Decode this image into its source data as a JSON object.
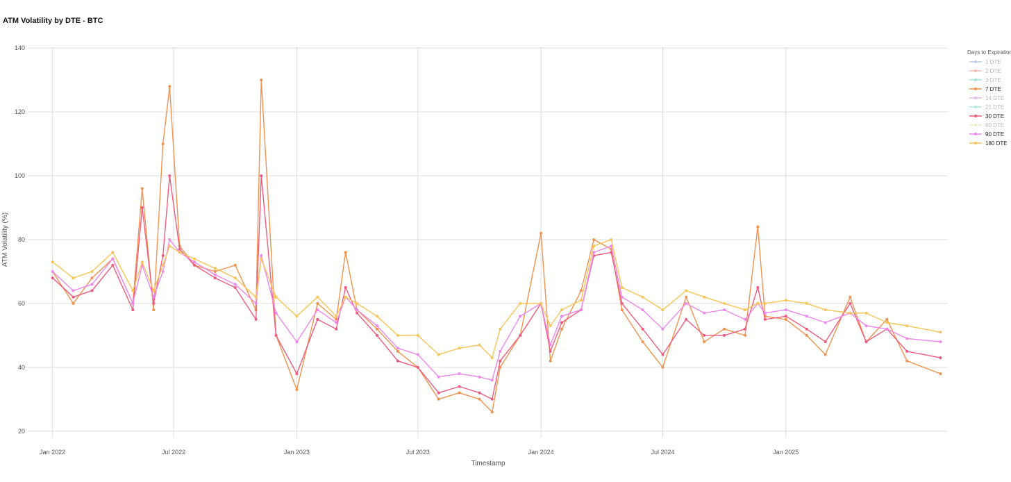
{
  "chart_data": {
    "type": "line",
    "title": "ATM Volatility by DTE - BTC",
    "xlabel": "Timestamp",
    "ylabel": "ATM Volatility (%)",
    "ylim": [
      18,
      142
    ],
    "yticks": [
      20,
      40,
      60,
      80,
      100,
      120,
      140
    ],
    "xlim": [
      "2021-11-25",
      "2025-08-31"
    ],
    "xticks": [
      {
        "date": "2022-01-01",
        "label": "Jan 2022"
      },
      {
        "date": "2022-07-01",
        "label": "Jul 2022"
      },
      {
        "date": "2023-01-01",
        "label": "Jan 2023"
      },
      {
        "date": "2023-07-01",
        "label": "Jul 2023"
      },
      {
        "date": "2024-01-01",
        "label": "Jan 2024"
      },
      {
        "date": "2024-07-01",
        "label": "Jul 2024"
      },
      {
        "date": "2025-01-01",
        "label": "Jan 2025"
      }
    ],
    "grid": true,
    "legend": {
      "title": "Days to Expiration",
      "position": "right"
    },
    "x": [
      "2022-01-01",
      "2022-02-01",
      "2022-03-01",
      "2022-04-01",
      "2022-05-01",
      "2022-05-15",
      "2022-06-01",
      "2022-06-15",
      "2022-06-25",
      "2022-07-10",
      "2022-08-01",
      "2022-09-01",
      "2022-10-01",
      "2022-11-01",
      "2022-11-09",
      "2022-12-01",
      "2023-01-01",
      "2023-02-01",
      "2023-03-01",
      "2023-03-15",
      "2023-04-01",
      "2023-05-01",
      "2023-06-01",
      "2023-07-01",
      "2023-08-01",
      "2023-09-01",
      "2023-10-01",
      "2023-10-20",
      "2023-11-01",
      "2023-12-01",
      "2024-01-01",
      "2024-01-15",
      "2024-02-01",
      "2024-03-01",
      "2024-03-20",
      "2024-04-15",
      "2024-05-01",
      "2024-06-01",
      "2024-07-01",
      "2024-08-05",
      "2024-09-01",
      "2024-10-01",
      "2024-11-01",
      "2024-11-20",
      "2024-12-01",
      "2025-01-01",
      "2025-02-01",
      "2025-03-01",
      "2025-04-07",
      "2025-05-01",
      "2025-06-01",
      "2025-07-01",
      "2025-08-20"
    ],
    "series": [
      {
        "name": "1 DTE",
        "color": "#a6b4dc",
        "visible": false
      },
      {
        "name": "2 DTE",
        "color": "#f4a28c",
        "visible": false
      },
      {
        "name": "3 DTE",
        "color": "#7ddac0",
        "visible": false
      },
      {
        "name": "7 DTE",
        "color": "#f0924c",
        "visible": true,
        "values": [
          70,
          60,
          68,
          74,
          60,
          96,
          58,
          110,
          128,
          78,
          72,
          70,
          72,
          58,
          130,
          50,
          33,
          60,
          55,
          76,
          58,
          52,
          45,
          40,
          30,
          32,
          30,
          26,
          40,
          50,
          82,
          42,
          52,
          64,
          80,
          77,
          58,
          48,
          40,
          62,
          48,
          52,
          50,
          84,
          56,
          55,
          50,
          44,
          62,
          48,
          55,
          42,
          38
        ]
      },
      {
        "name": "14 DTE",
        "color": "#dc9ce4",
        "visible": false
      },
      {
        "name": "21 DTE",
        "color": "#94dcd8",
        "visible": false
      },
      {
        "name": "30 DTE",
        "color": "#ee5a7c",
        "visible": true,
        "values": [
          68,
          62,
          64,
          72,
          58,
          90,
          60,
          75,
          100,
          77,
          72,
          68,
          65,
          55,
          100,
          50,
          38,
          55,
          52,
          65,
          57,
          50,
          42,
          40,
          32,
          34,
          32,
          30,
          42,
          50,
          60,
          45,
          54,
          58,
          75,
          76,
          60,
          52,
          44,
          55,
          50,
          50,
          52,
          65,
          55,
          56,
          52,
          48,
          60,
          48,
          52,
          45,
          43
        ]
      },
      {
        "name": "60 DTE",
        "color": "#d4ecb4",
        "visible": false
      },
      {
        "name": "90 DTE",
        "color": "#ee86ee",
        "visible": true,
        "values": [
          70,
          64,
          66,
          74,
          60,
          72,
          62,
          70,
          80,
          76,
          73,
          69,
          66,
          60,
          75,
          57,
          48,
          58,
          54,
          62,
          58,
          53,
          46,
          44,
          37,
          38,
          37,
          36,
          45,
          56,
          60,
          47,
          56,
          58,
          76,
          78,
          62,
          58,
          52,
          60,
          57,
          58,
          55,
          60,
          57,
          58,
          56,
          54,
          57,
          53,
          52,
          49,
          48
        ]
      },
      {
        "name": "180 DTE",
        "color": "#f8c454",
        "visible": true,
        "values": [
          73,
          68,
          70,
          76,
          64,
          73,
          64,
          72,
          78,
          76,
          74,
          71,
          68,
          62,
          74,
          62,
          56,
          62,
          56,
          62,
          60,
          56,
          50,
          50,
          44,
          46,
          47,
          43,
          52,
          60,
          60,
          53,
          58,
          61,
          78,
          80,
          65,
          62,
          58,
          64,
          62,
          60,
          58,
          60,
          60,
          61,
          60,
          58,
          57,
          57,
          54,
          53,
          51
        ]
      }
    ]
  }
}
